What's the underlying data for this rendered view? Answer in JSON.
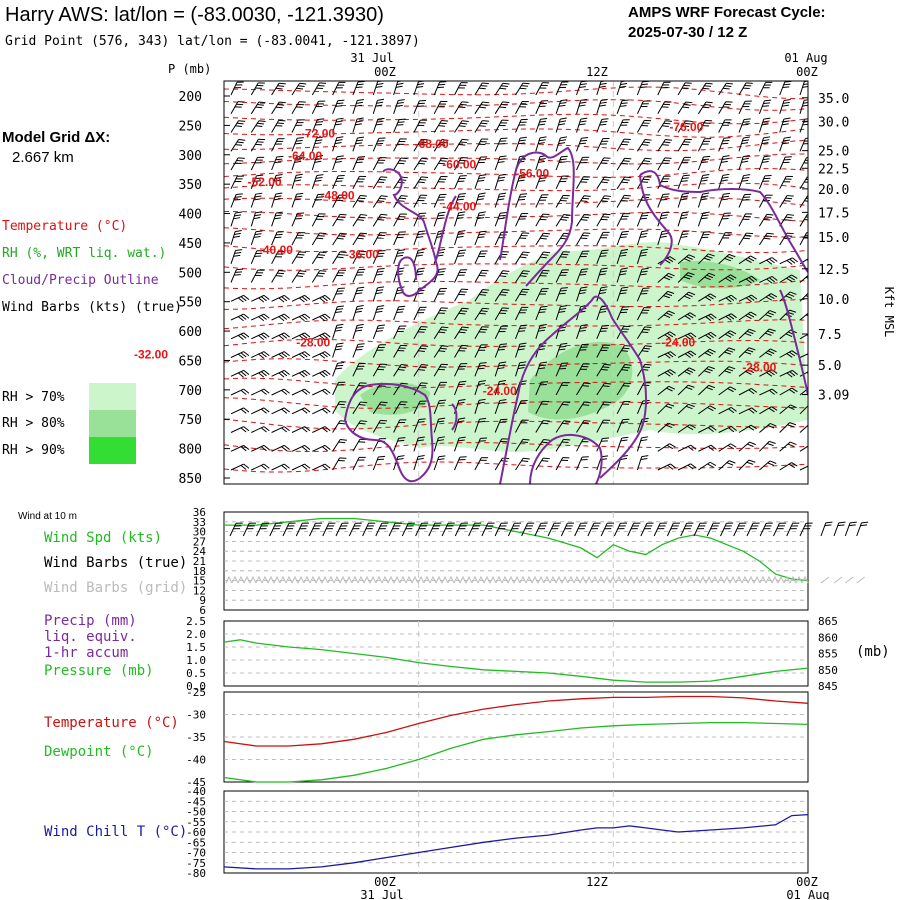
{
  "header": {
    "title": "Harry AWS:  lat/lon = (-83.0030, -121.3930)",
    "subtitle": "Grid Point (576, 343) lat/lon = (-83.0041, -121.3897)",
    "cycle_line1": "AMPS WRF Forecast Cycle:",
    "cycle_line2": "2025-07-30 / 12  Z"
  },
  "legend": {
    "model_grid_label": "Model Grid ΔX:",
    "model_grid_value": "2.667 km",
    "temperature": "Temperature (°C)",
    "rh": "RH (%, WRT liq. wat.)",
    "cloud": "Cloud/Precip Outline",
    "wind": "Wind Barbs (kts) (true)",
    "rh70": "RH > 70%",
    "rh80": "RH > 80%",
    "rh90": "RH > 90%",
    "colors": {
      "temperature": "#dd1111",
      "rh": "#22aa22",
      "cloud": "#7a2a9a",
      "rh70": "#ccf5cc",
      "rh80": "#99e099",
      "rh90": "#33dd33"
    }
  },
  "time_axis": {
    "top_dates": [
      "31 Jul",
      "01 Aug"
    ],
    "top_hours": [
      "00Z",
      "12Z",
      "00Z"
    ],
    "bottom_hours": [
      "00Z",
      "12Z",
      "00Z"
    ],
    "bottom_dates": [
      "31 Jul",
      "01 Aug"
    ]
  },
  "chart_data": [
    {
      "type": "heatmap",
      "name": "cross-section",
      "x_hours": [
        -12,
        24
      ],
      "ylabel_left": "P (mb)",
      "ylabel_right": "Kft MSL",
      "pressure_levels": [
        "200",
        "250",
        "300",
        "350",
        "400",
        "450",
        "500",
        "550",
        "600",
        "650",
        "700",
        "750",
        "800",
        "850"
      ],
      "height_ticks": [
        {
          "p": 203,
          "label": "35.0"
        },
        {
          "p": 243,
          "label": "30.0"
        },
        {
          "p": 293,
          "label": "25.0"
        },
        {
          "p": 323,
          "label": "22.5"
        },
        {
          "p": 358,
          "label": "20.0"
        },
        {
          "p": 398,
          "label": "17.5"
        },
        {
          "p": 440,
          "label": "15.0"
        },
        {
          "p": 494,
          "label": "12.5"
        },
        {
          "p": 545,
          "label": "10.0"
        },
        {
          "p": 605,
          "label": "7.5"
        },
        {
          "p": 658,
          "label": "5.0"
        },
        {
          "p": 708,
          "label": "3.09"
        }
      ],
      "temperature_labels": [
        {
          "t": -6.2,
          "p": 262,
          "text": "-72.00"
        },
        {
          "t": 16.5,
          "p": 251,
          "text": "-76.00"
        },
        {
          "t": 0.8,
          "p": 280,
          "text": "-68.00"
        },
        {
          "t": -7,
          "p": 300,
          "text": "-64.00"
        },
        {
          "t": 2.5,
          "p": 315,
          "text": "-60.00"
        },
        {
          "t": 7,
          "p": 330,
          "text": "-56.00"
        },
        {
          "t": -9.5,
          "p": 345,
          "text": "-52.00"
        },
        {
          "t": -5,
          "p": 368,
          "text": "-48.00"
        },
        {
          "t": 2.5,
          "p": 386,
          "text": "-44.00"
        },
        {
          "t": -8.8,
          "p": 460,
          "text": "-40.00"
        },
        {
          "t": -3.5,
          "p": 468,
          "text": "-36.00"
        },
        {
          "t": -6.5,
          "p": 618,
          "text": "-28.00"
        },
        {
          "t": -16.5,
          "p": 638,
          "text": "-32.00"
        },
        {
          "t": 16,
          "p": 618,
          "text": "-24.00"
        },
        {
          "t": 21,
          "p": 660,
          "text": "-28.00"
        },
        {
          "t": 5,
          "p": 700,
          "text": "-24.00"
        }
      ]
    },
    {
      "type": "line",
      "name": "wind-10m",
      "panel_label": "Wind at 10 m",
      "labels": {
        "wind_spd": "Wind Spd (kts)",
        "barbs_true": "Wind Barbs (true)",
        "barbs_grid": "Wind Barbs (grid)"
      },
      "ylim": [
        6,
        36
      ],
      "y_ticks": [
        "36",
        "33",
        "30",
        "27",
        "24",
        "21",
        "18",
        "15",
        "12",
        "9",
        "6"
      ],
      "x": [
        -12,
        -10,
        -8,
        -6,
        -4,
        -2,
        0,
        2,
        4,
        6,
        8,
        9,
        10,
        11,
        12,
        13,
        14,
        15,
        16,
        17,
        18,
        19,
        20,
        21,
        22,
        23,
        24
      ],
      "series": [
        {
          "name": "Wind Spd (kts)",
          "color": "#22bb22",
          "values": [
            32,
            32,
            33,
            34,
            34,
            33,
            32,
            32,
            32,
            30,
            28,
            26.5,
            25,
            22,
            26,
            24,
            23,
            26,
            28,
            29,
            28,
            26,
            24,
            21,
            17,
            15.5,
            15
          ]
        }
      ],
      "x_extra_barbs": [
        24.8,
        25.6,
        26.3,
        27.0
      ]
    },
    {
      "type": "line",
      "name": "precip-pressure",
      "labels": {
        "precip": "Precip (mm)",
        "liq": "liq. equiv.",
        "accum": "1-hr accum",
        "pressure": "Pressure (mb)"
      },
      "right_unit": "(mb)",
      "ylim_left": [
        0,
        2.5
      ],
      "y_ticks_left": [
        "2.5",
        "2.0",
        "1.5",
        "1.0",
        "0.5",
        "0.0"
      ],
      "ylim_right": [
        845,
        865
      ],
      "y_ticks_right": [
        "865",
        "860",
        "855",
        "850",
        "845"
      ],
      "x": [
        -12,
        -11,
        -10,
        -8,
        -6,
        -4,
        -2,
        0,
        2,
        4,
        6,
        8,
        10,
        12,
        14,
        16,
        18,
        20,
        22,
        24
      ],
      "series": [
        {
          "name": "Pressure (mb)",
          "color": "#22bb22",
          "axis": "right",
          "values": [
            858.5,
            859.2,
            858.2,
            857,
            856.2,
            855,
            853.8,
            852.2,
            851,
            850,
            849.5,
            849,
            848,
            846.8,
            846.2,
            846.2,
            846.5,
            848,
            849.5,
            850.5
          ]
        }
      ]
    },
    {
      "type": "line",
      "name": "temp-dewpoint",
      "labels": {
        "temperature": "Temperature (°C)",
        "dewpoint": "Dewpoint (°C)"
      },
      "ylim": [
        -45,
        -25
      ],
      "y_ticks": [
        "-25",
        "-30",
        "-35",
        "-40",
        "-45"
      ],
      "x": [
        -12,
        -10,
        -8,
        -6,
        -4,
        -2,
        0,
        2,
        4,
        6,
        8,
        10,
        12,
        14,
        16,
        18,
        20,
        22,
        24
      ],
      "series": [
        {
          "name": "Temperature (°C)",
          "color": "#cc1111",
          "values": [
            -36,
            -37,
            -37,
            -36.5,
            -35.5,
            -34,
            -32,
            -30.2,
            -28.8,
            -27.8,
            -27,
            -26.5,
            -26.2,
            -26.2,
            -26,
            -26,
            -26.3,
            -27,
            -27.5
          ]
        },
        {
          "name": "Dewpoint (°C)",
          "color": "#22bb22",
          "values": [
            -44,
            -45,
            -45,
            -44.5,
            -43.5,
            -42,
            -40,
            -37.5,
            -35.5,
            -34.5,
            -33.8,
            -33,
            -32.5,
            -32.2,
            -32,
            -31.8,
            -31.8,
            -32,
            -32.2
          ]
        }
      ]
    },
    {
      "type": "line",
      "name": "wind-chill",
      "labels": {
        "wind_chill": "Wind Chill T (°C)"
      },
      "ylim": [
        -80,
        -40
      ],
      "y_ticks": [
        "-40",
        "-45",
        "-50",
        "-55",
        "-60",
        "-65",
        "-70",
        "-75",
        "-80"
      ],
      "x": [
        -12,
        -10,
        -8,
        -6,
        -4,
        -2,
        0,
        2,
        4,
        6,
        8,
        10,
        11,
        12,
        13,
        14,
        15,
        16,
        18,
        20,
        22,
        23,
        24
      ],
      "series": [
        {
          "name": "Wind Chill T (°C)",
          "color": "#1a1aa0",
          "values": [
            -77,
            -78,
            -78,
            -77,
            -75,
            -72.5,
            -70,
            -67.5,
            -65,
            -63,
            -61.5,
            -59,
            -58,
            -58,
            -57,
            -58,
            -59,
            -60,
            -59,
            -58,
            -56.5,
            -52,
            -51.5
          ]
        }
      ]
    }
  ]
}
